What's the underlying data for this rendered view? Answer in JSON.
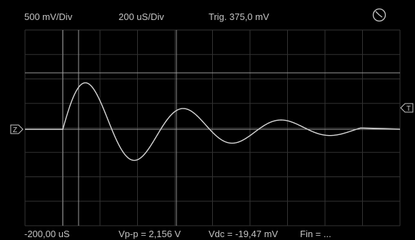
{
  "header": {
    "volts_per_div": "500 mV/Div",
    "time_per_div": "200 uS/Div",
    "trigger": "Trig. 375,0 mV",
    "status_icon": "clock-icon"
  },
  "footer": {
    "time_offset": "-200,00 uS",
    "vpp": "Vp-p = 2,156 V",
    "vdc": "Vdc = -19,47 mV",
    "fin": "Fin = ..."
  },
  "markers": {
    "ground": "Z",
    "trigger": "T"
  },
  "colors": {
    "background": "#000000",
    "grid": "#3a3a3a",
    "cursor": "#9a9a9a",
    "trace": "#d8d8d8",
    "text": "#c4c4c4"
  },
  "icons": [
    "clock-icon",
    "ground-marker-icon",
    "trigger-marker-icon"
  ]
}
